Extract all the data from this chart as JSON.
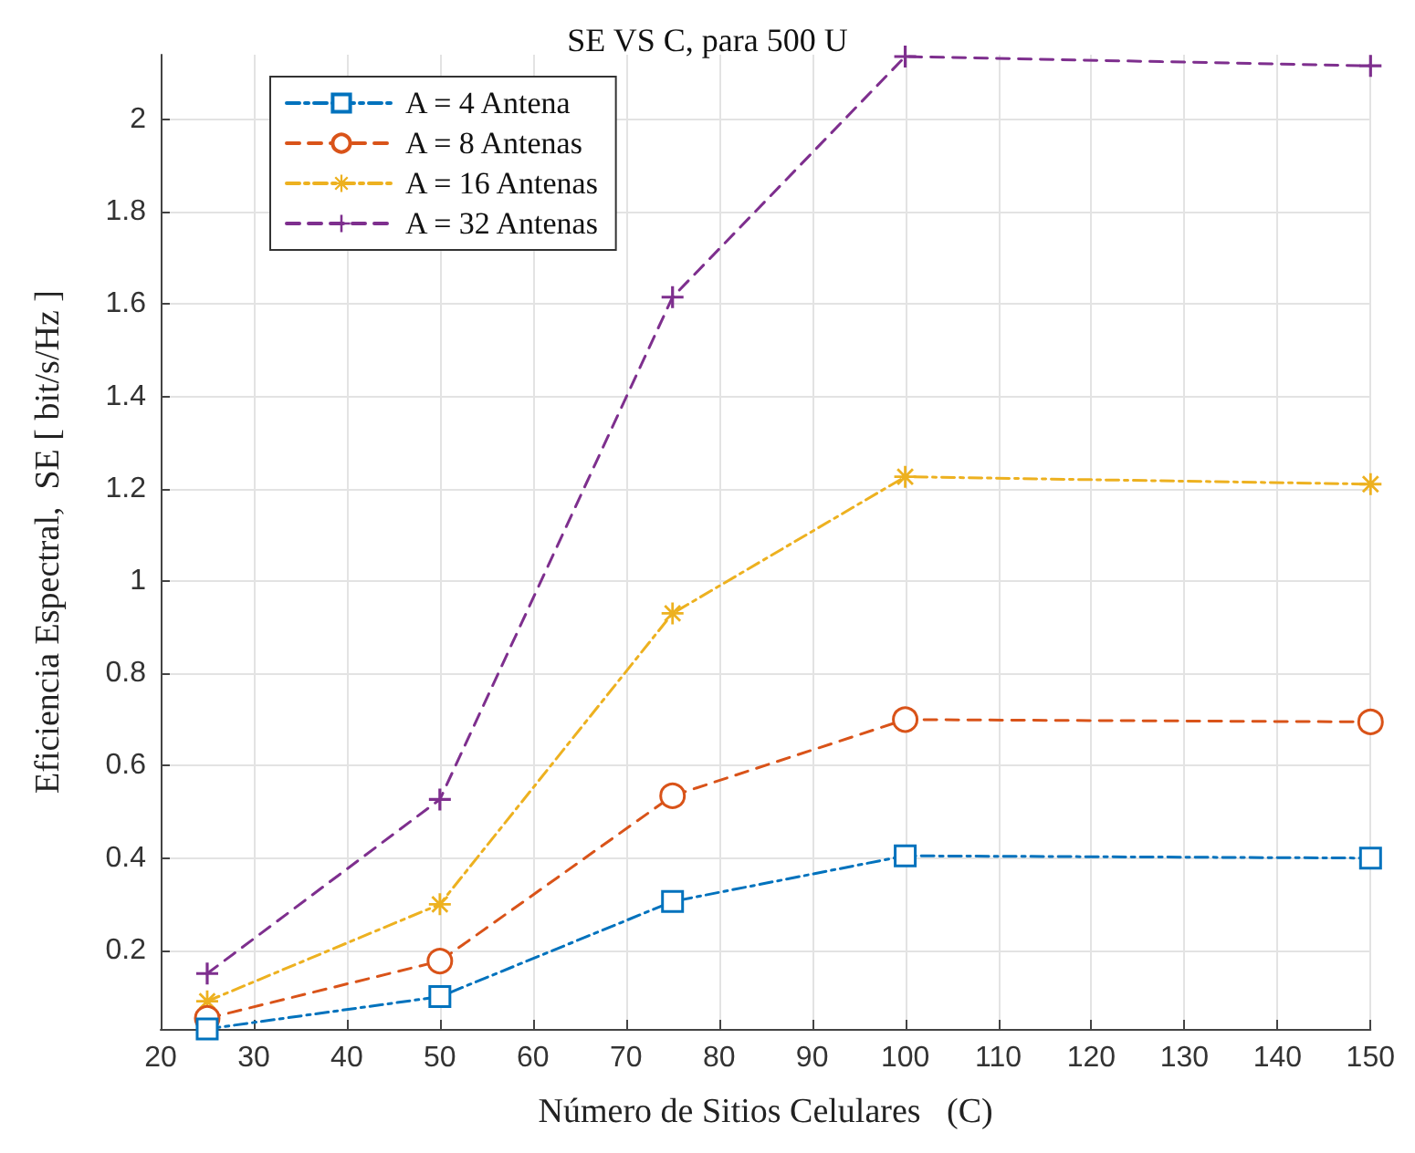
{
  "chart_data": {
    "type": "line",
    "title": "SE VS C, para 500 U",
    "xlabel": "Número de Sitios Celulares   (C)",
    "ylabel": "Eficiencia Espectral,  SE [ bit/s/Hz ]",
    "x": [
      25,
      50,
      75,
      100,
      150
    ],
    "series": [
      {
        "name": "A = 4 Antena",
        "color": "#0072bd",
        "marker": "square",
        "line_style": "dashdot",
        "values": [
          0.03,
          0.1,
          0.306,
          0.405,
          0.4
        ]
      },
      {
        "name": "A = 8 Antenas",
        "color": "#d95319",
        "marker": "circle",
        "line_style": "dashed",
        "values": [
          0.053,
          0.177,
          0.535,
          0.7,
          0.695
        ]
      },
      {
        "name": "A = 16 Antenas",
        "color": "#edb120",
        "marker": "star",
        "line_style": "dashdot",
        "values": [
          0.09,
          0.3,
          0.93,
          1.226,
          1.21
        ]
      },
      {
        "name": "A = 32 Antenas",
        "color": "#7e2f8e",
        "marker": "cross",
        "line_style": "dashed",
        "values": [
          0.15,
          0.527,
          1.615,
          2.136,
          2.116
        ]
      }
    ],
    "xlim": [
      20,
      150
    ],
    "xticks": [
      20,
      30,
      40,
      50,
      60,
      70,
      80,
      90,
      100,
      110,
      120,
      130,
      140,
      150
    ],
    "ylim": [
      0.03,
      2.14
    ],
    "yticks": [
      0.2,
      0.4,
      0.6,
      0.8,
      1,
      1.2,
      1.4,
      1.6,
      1.8,
      2
    ],
    "grid": true,
    "legend": "top left"
  }
}
